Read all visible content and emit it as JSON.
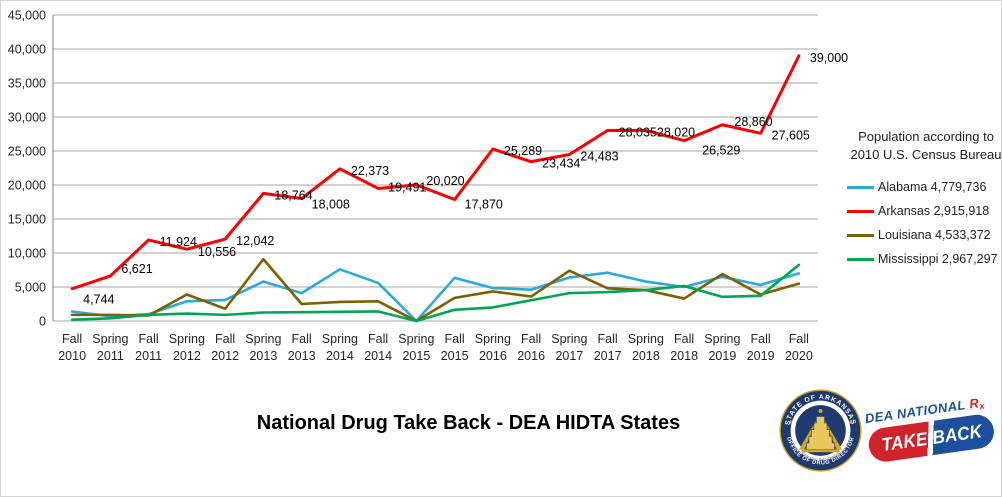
{
  "title": "National Drug Take Back - DEA HIDTA States",
  "chart_data": {
    "type": "line",
    "title": "National Drug Take Back - DEA HIDTA States",
    "xlabel": "",
    "ylabel": "",
    "ylim": [
      0,
      45000
    ],
    "y_tick_interval": 5000,
    "y_tick_labels": [
      "0",
      "5,000",
      "10,000",
      "15,000",
      "20,000",
      "25,000",
      "30,000",
      "35,000",
      "40,000",
      "45,000"
    ],
    "grid": true,
    "categories": [
      "Fall 2010",
      "Spring 2011",
      "Fall 2011",
      "Spring 2012",
      "Fall 2012",
      "Spring 2013",
      "Fall 2013",
      "Spring 2014",
      "Fall 2014",
      "Spring 2015",
      "Fall 2015",
      "Spring 2016",
      "Fall 2016",
      "Spring 2017",
      "Fall 2017",
      "Spring 2018",
      "Fall 2018",
      "Spring 2019",
      "Fall 2019",
      "Fall 2020"
    ],
    "series": [
      {
        "name": "Alabama",
        "color": "#29A9DC",
        "values": [
          1400,
          700,
          1000,
          2900,
          3100,
          5800,
          4100,
          7600,
          5600,
          0,
          6350,
          4850,
          4600,
          6400,
          7100,
          5800,
          5000,
          6500,
          5300,
          7000
        ]
      },
      {
        "name": "Arkansas",
        "color": "#FF0000",
        "values": [
          4744,
          6621,
          11924,
          10556,
          12042,
          18764,
          18008,
          22373,
          19491,
          20020,
          17870,
          25289,
          23434,
          24483,
          28035,
          28020,
          26529,
          28860,
          27605,
          39000
        ],
        "value_labels": [
          "4,744",
          "6,621",
          "11,924",
          "10,556",
          "12,042",
          "18,764",
          "18,008",
          "22,373",
          "19,491",
          "20,020",
          "17,870",
          "25,289",
          "23,434",
          "24,483",
          "28,035",
          "28,020",
          "26,529",
          "28,860",
          "27,605",
          "39,000"
        ]
      },
      {
        "name": "Louisiana",
        "color": "#7F6000",
        "values": [
          900,
          900,
          800,
          3900,
          1800,
          9100,
          2500,
          2800,
          2900,
          0,
          3400,
          4350,
          3600,
          7400,
          4800,
          4550,
          3300,
          6900,
          3900,
          5500
        ]
      },
      {
        "name": "Mississippi",
        "color": "#00A652",
        "values": [
          200,
          400,
          900,
          1100,
          900,
          1250,
          1300,
          1350,
          1400,
          0,
          1650,
          2000,
          3050,
          4100,
          4250,
          4550,
          5150,
          3550,
          3700,
          8250
        ]
      }
    ],
    "legend": {
      "position": "right",
      "header_line1": "Population according to",
      "header_line2": "2010 U.S. Census Bureau",
      "items": [
        {
          "label": "Alabama 4,779,736",
          "color": "#29A9DC"
        },
        {
          "label": "Arkansas 2,915,918",
          "color": "#FF0000"
        },
        {
          "label": "Louisiana 4,533,372",
          "color": "#7F6000"
        },
        {
          "label": "Mississippi 2,967,297",
          "color": "#00A652"
        }
      ]
    }
  },
  "logos": {
    "arkansas_seal": {
      "top_text": "STATE OF ARKANSAS",
      "bottom_text": "OFFICE OF DRUG DIRECTOR",
      "inner_top_text": "Prevention      Treatment",
      "inner_bottom_text": "Education      Enforcement",
      "navy": "#1E3A6E",
      "gold": "#C9A227"
    },
    "dea_takeback": {
      "line1": "DEA NATIONAL",
      "rx": "Rx",
      "pill_left": "TAKE",
      "pill_right": "BACK",
      "blue": "#1C4F9C",
      "red": "#D2232A"
    }
  }
}
